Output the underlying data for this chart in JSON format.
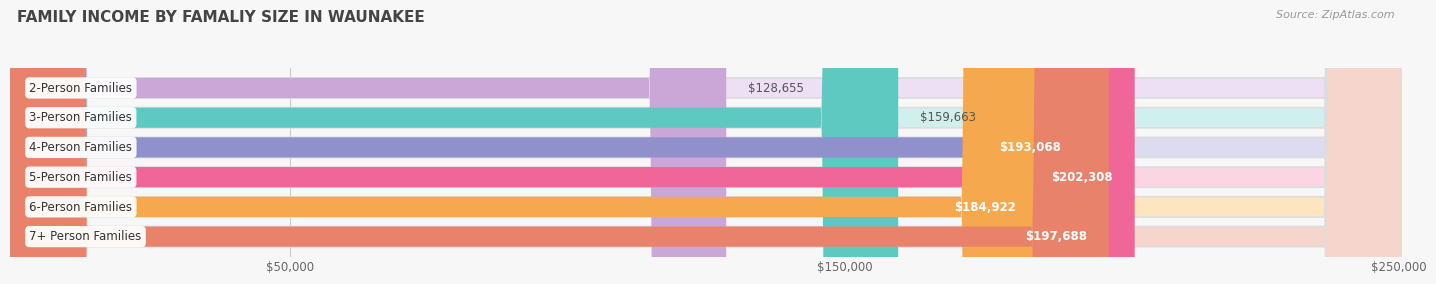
{
  "title": "FAMILY INCOME BY FAMALIY SIZE IN WAUNAKEE",
  "source": "Source: ZipAtlas.com",
  "categories": [
    "2-Person Families",
    "3-Person Families",
    "4-Person Families",
    "5-Person Families",
    "6-Person Families",
    "7+ Person Families"
  ],
  "values": [
    128655,
    159663,
    193068,
    202308,
    184922,
    197688
  ],
  "bar_colors": [
    "#c9a8d8",
    "#5ec9c1",
    "#9090cc",
    "#f06699",
    "#f5a84e",
    "#e8826a"
  ],
  "bar_bg_colors": [
    "#ede0f5",
    "#d0f0ed",
    "#dcdcf0",
    "#fcd5e4",
    "#fde5c0",
    "#f5d5cc"
  ],
  "value_colors": [
    "#888888",
    "#888888",
    "#ffffff",
    "#ffffff",
    "#ffffff",
    "#ffffff"
  ],
  "xmin": 0,
  "xmax": 250000,
  "xtick_vals": [
    50000,
    150000,
    250000
  ],
  "xtick_labels": [
    "$50,000",
    "$150,000",
    "$250,000"
  ],
  "background_color": "#f7f7f7",
  "bar_outline_color": "#dddddd",
  "title_fontsize": 11,
  "label_fontsize": 8.5,
  "value_fontsize": 8.5,
  "source_fontsize": 8
}
